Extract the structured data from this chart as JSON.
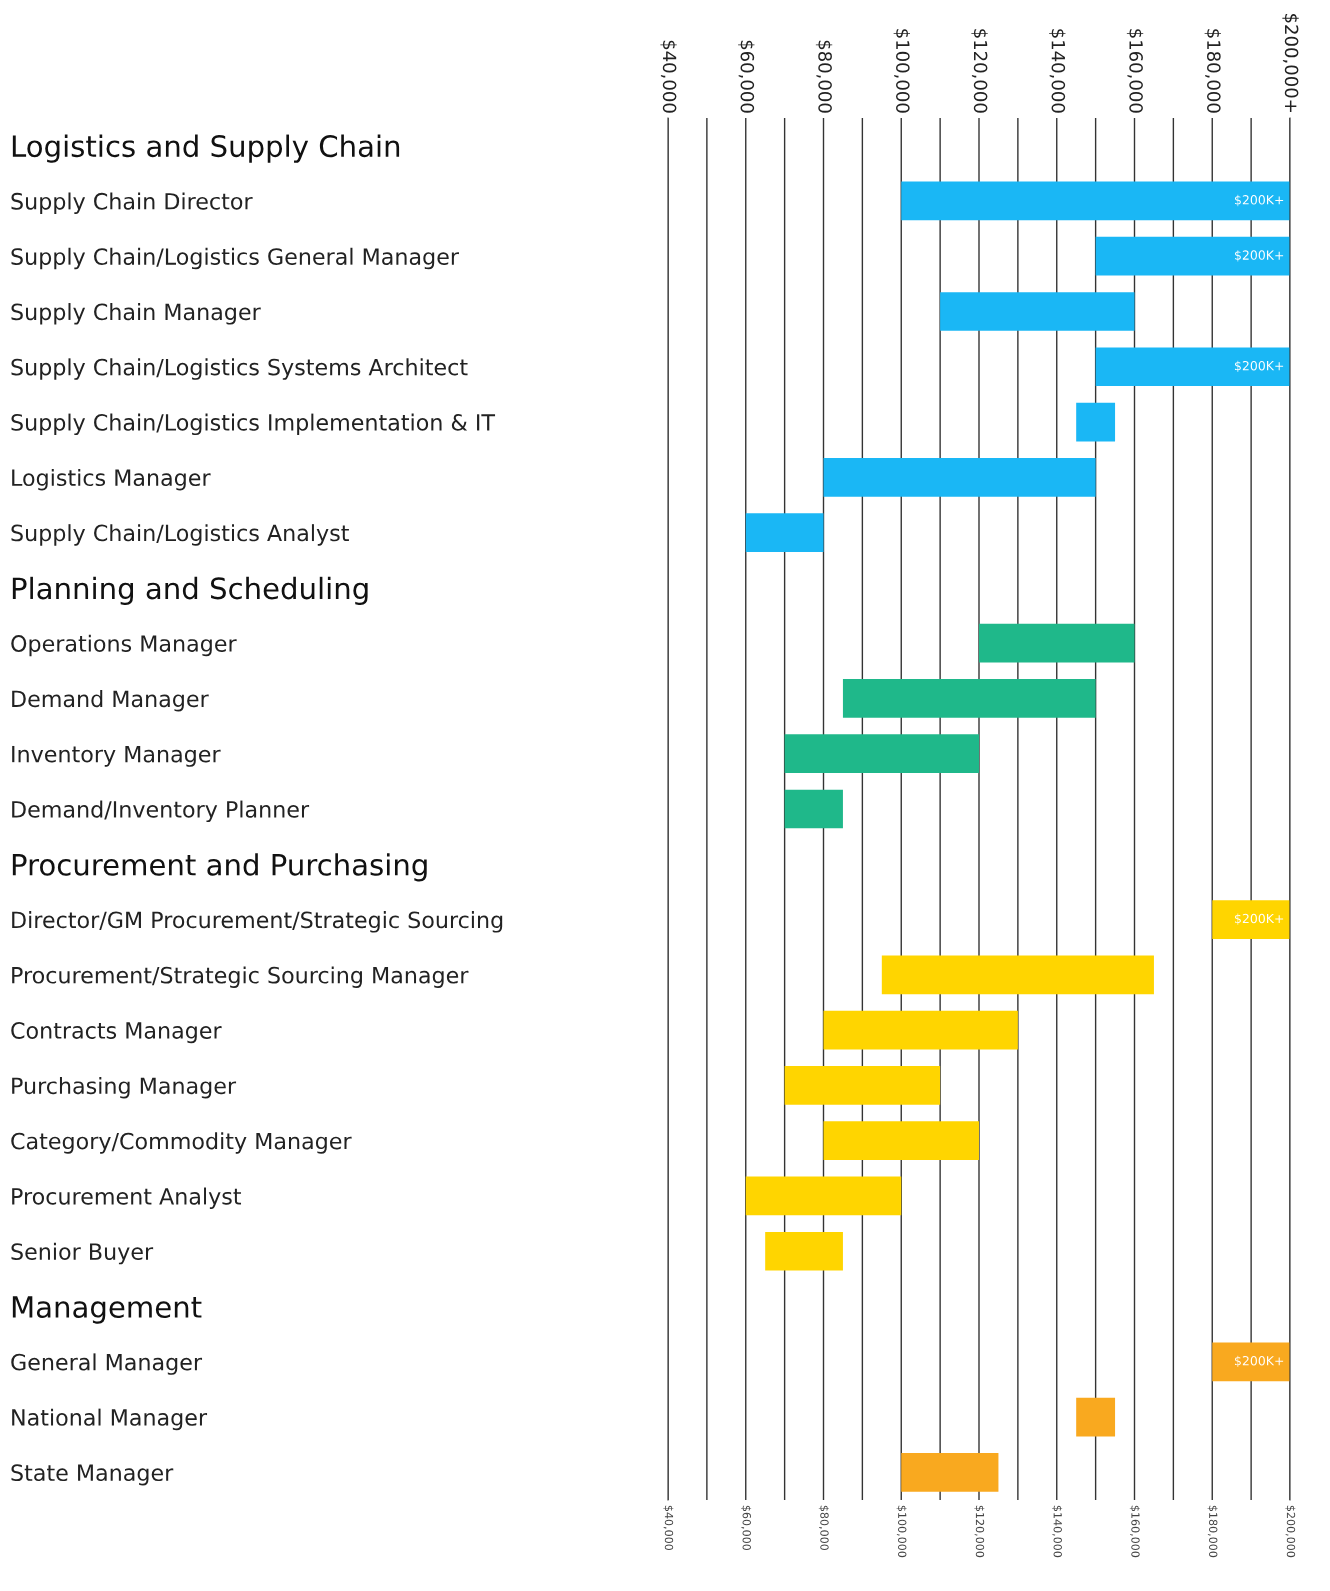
{
  "chart_data": {
    "type": "bar",
    "orientation": "horizontal",
    "categories": [
      "Logistics and Supply Chain",
      "Supply Chain Director",
      "Supply Chain/Logistics General Manager",
      "Supply Chain Manager",
      "Supply Chain/Logistics Systems Architect",
      "Supply Chain/Logistics Implementation & IT",
      "Logistics Manager",
      "Supply Chain/Logistics Analyst",
      "Planning and Scheduling",
      "Operations Manager",
      "Demand Manager",
      "Inventory Manager",
      "Demand/Inventory Planner",
      "Procurement and Purchasing",
      "Director/GM Procurement/Strategic Sourcing",
      "Procurement/Strategic Sourcing Manager",
      "Contracts Manager",
      "Purchasing Manager",
      "Category/Commodity Manager",
      "Procurement Analyst",
      "Senior Buyer",
      "Management",
      "General Manager",
      "National Manager",
      "State Manager"
    ],
    "base": [
      null,
      100000,
      150000,
      110000,
      150000,
      145000,
      80000,
      60000,
      null,
      120000,
      85000,
      70000,
      70000,
      null,
      180000,
      95000,
      80000,
      70000,
      80000,
      60000,
      65000,
      null,
      180000,
      145000,
      100000
    ],
    "values": [
      null,
      100000,
      50000,
      50000,
      50000,
      10000,
      70000,
      20000,
      null,
      40000,
      65000,
      50000,
      15000,
      null,
      20000,
      70000,
      50000,
      40000,
      40000,
      40000,
      20000,
      null,
      20000,
      10000,
      25000
    ],
    "colors": [
      null,
      "#1ab7f5",
      "#1ab7f5",
      "#1ab7f5",
      "#1ab7f5",
      "#1ab7f5",
      "#1ab7f5",
      "#1ab7f5",
      null,
      "#1fb88a",
      "#1fb88a",
      "#1fb88a",
      "#1fb88a",
      null,
      "#ffd500",
      "#ffd500",
      "#ffd500",
      "#ffd500",
      "#ffd500",
      "#ffd500",
      "#ffd500",
      null,
      "#f9a91f",
      "#f9a91f",
      "#f9a91f"
    ],
    "annotations": [
      "$200K+",
      "$200K+",
      "$200K+",
      "$200K+",
      "$200K+"
    ],
    "xlim": [
      40000,
      200000
    ],
    "xticks": [
      {
        "value": 40000,
        "label": "$40,000"
      },
      {
        "value": 50000,
        "label": null
      },
      {
        "value": 60000,
        "label": "$60,000"
      },
      {
        "value": 70000,
        "label": null
      },
      {
        "value": 80000,
        "label": "$80,000"
      },
      {
        "value": 90000,
        "label": null
      },
      {
        "value": 100000,
        "label": "$100,000"
      },
      {
        "value": 110000,
        "label": null
      },
      {
        "value": 120000,
        "label": "$120,000"
      },
      {
        "value": 130000,
        "label": null
      },
      {
        "value": 140000,
        "label": "$140,000"
      },
      {
        "value": 150000,
        "label": null
      },
      {
        "value": 160000,
        "label": "$160,000"
      },
      {
        "value": 170000,
        "label": null
      },
      {
        "value": 180000,
        "label": "$180,000"
      },
      {
        "value": 190000,
        "label": null
      },
      {
        "value": 200000,
        "label": "$200,000"
      }
    ],
    "x2lim": [
      40000,
      200000
    ],
    "x2ticks": [
      {
        "value": 40000,
        "label": "$40,000"
      },
      {
        "value": 50000,
        "label": null
      },
      {
        "value": 60000,
        "label": "$60,000"
      },
      {
        "value": 70000,
        "label": null
      },
      {
        "value": 80000,
        "label": "$80,000"
      },
      {
        "value": 90000,
        "label": null
      },
      {
        "value": 100000,
        "label": "$100,000"
      },
      {
        "value": 110000,
        "label": null
      },
      {
        "value": 120000,
        "label": "$120,000"
      },
      {
        "value": 130000,
        "label": null
      },
      {
        "value": 140000,
        "label": "$140,000"
      },
      {
        "value": 150000,
        "label": null
      },
      {
        "value": 160000,
        "label": "$160,000"
      },
      {
        "value": 170000,
        "label": null
      },
      {
        "value": 180000,
        "label": "$180,000"
      },
      {
        "value": 190000,
        "label": null
      },
      {
        "value": 200000,
        "label": "$200,000+"
      }
    ],
    "grid": "x"
  }
}
